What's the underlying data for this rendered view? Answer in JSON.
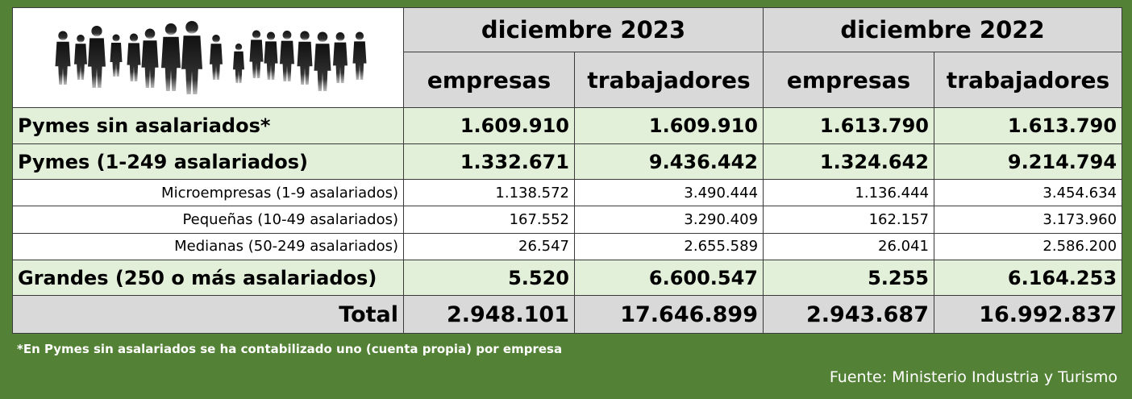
{
  "chart_data": {
    "type": "table",
    "header_groups": [
      "diciembre 2023",
      "diciembre 2022"
    ],
    "columns": [
      "empresas",
      "trabajadores",
      "empresas",
      "trabajadores"
    ],
    "rows": [
      {
        "label": "Pymes sin asalariados*",
        "level": "major",
        "values": [
          "1.609.910",
          "1.609.910",
          "1.613.790",
          "1.613.790"
        ]
      },
      {
        "label": "Pymes (1-249 asalariados)",
        "level": "major",
        "values": [
          "1.332.671",
          "9.436.442",
          "1.324.642",
          "9.214.794"
        ]
      },
      {
        "label": "Microempresas (1-9 asalariados)",
        "level": "minor",
        "values": [
          "1.138.572",
          "3.490.444",
          "1.136.444",
          "3.454.634"
        ]
      },
      {
        "label": "Pequeñas (10-49 asalariados)",
        "level": "minor",
        "values": [
          "167.552",
          "3.290.409",
          "162.157",
          "3.173.960"
        ]
      },
      {
        "label": "Medianas (50-249 asalariados)",
        "level": "minor",
        "values": [
          "26.547",
          "2.655.589",
          "26.041",
          "2.586.200"
        ]
      },
      {
        "label": "Grandes (250 o más asalariados)",
        "level": "major",
        "values": [
          "5.520",
          "6.600.547",
          "5.255",
          "6.164.253"
        ]
      },
      {
        "label": "Total",
        "level": "total",
        "values": [
          "2.948.101",
          "17.646.899",
          "2.943.687",
          "16.992.837"
        ]
      }
    ],
    "colors": {
      "background": "#538135",
      "header": "#d9d9d9",
      "highlight_rows": "#e2efd9",
      "plain_rows": "#ffffff"
    }
  },
  "footnote": "*En Pymes sin asalariados se ha contabilizado uno (cuenta propia) por empresa",
  "source": "Fuente: Ministerio Industria y Turismo",
  "logo": {
    "icon": "people-silhouettes-icon"
  }
}
